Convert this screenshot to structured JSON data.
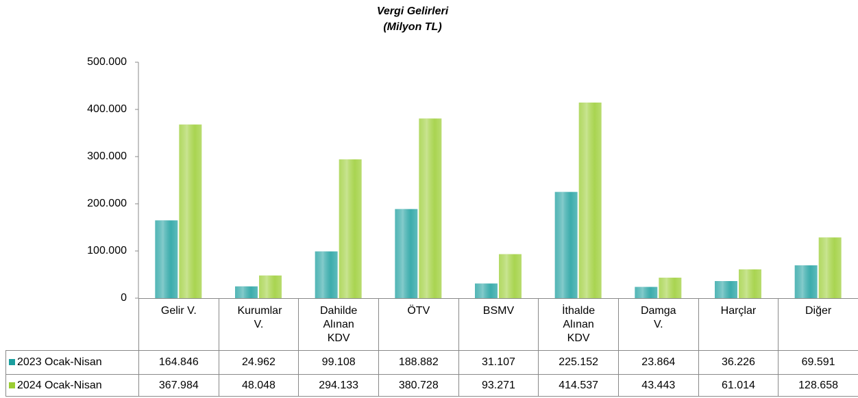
{
  "chart_data": {
    "type": "bar",
    "title": "Vergi Gelirleri",
    "subtitle": "(Milyon TL)",
    "categories": [
      "Gelir V.",
      "Kurumlar V.",
      "Dahilde Alınan KDV",
      "ÖTV",
      "BSMV",
      "İthalde Alınan KDV",
      "Damga V.",
      "Harçlar",
      "Diğer"
    ],
    "series": [
      {
        "name": "2023 Ocak-Nisan",
        "color": "#1a9e9e",
        "values": [
          164846,
          24962,
          99108,
          188882,
          31107,
          225152,
          23864,
          36226,
          69591
        ],
        "value_labels": [
          "164.846",
          "24.962",
          "99.108",
          "188.882",
          "31.107",
          "225.152",
          "23.864",
          "36.226",
          "69.591"
        ]
      },
      {
        "name": "2024 Ocak-Nisan",
        "color": "#9acd32",
        "values": [
          367984,
          48048,
          294133,
          380728,
          93271,
          414537,
          43443,
          61014,
          128658
        ],
        "value_labels": [
          "367.984",
          "48.048",
          "294.133",
          "380.728",
          "93.271",
          "414.537",
          "43.443",
          "61.014",
          "128.658"
        ]
      }
    ],
    "ylim": [
      0,
      500000
    ],
    "yticks": [
      0,
      {
        "value": 100000,
        "label": "100.000"
      },
      {
        "value": 200000,
        "label": "200.000"
      },
      {
        "value": 300000,
        "label": "300.000"
      },
      {
        "value": 400000,
        "label": "400.000"
      },
      {
        "value": 500000,
        "label": "500.000"
      }
    ]
  }
}
